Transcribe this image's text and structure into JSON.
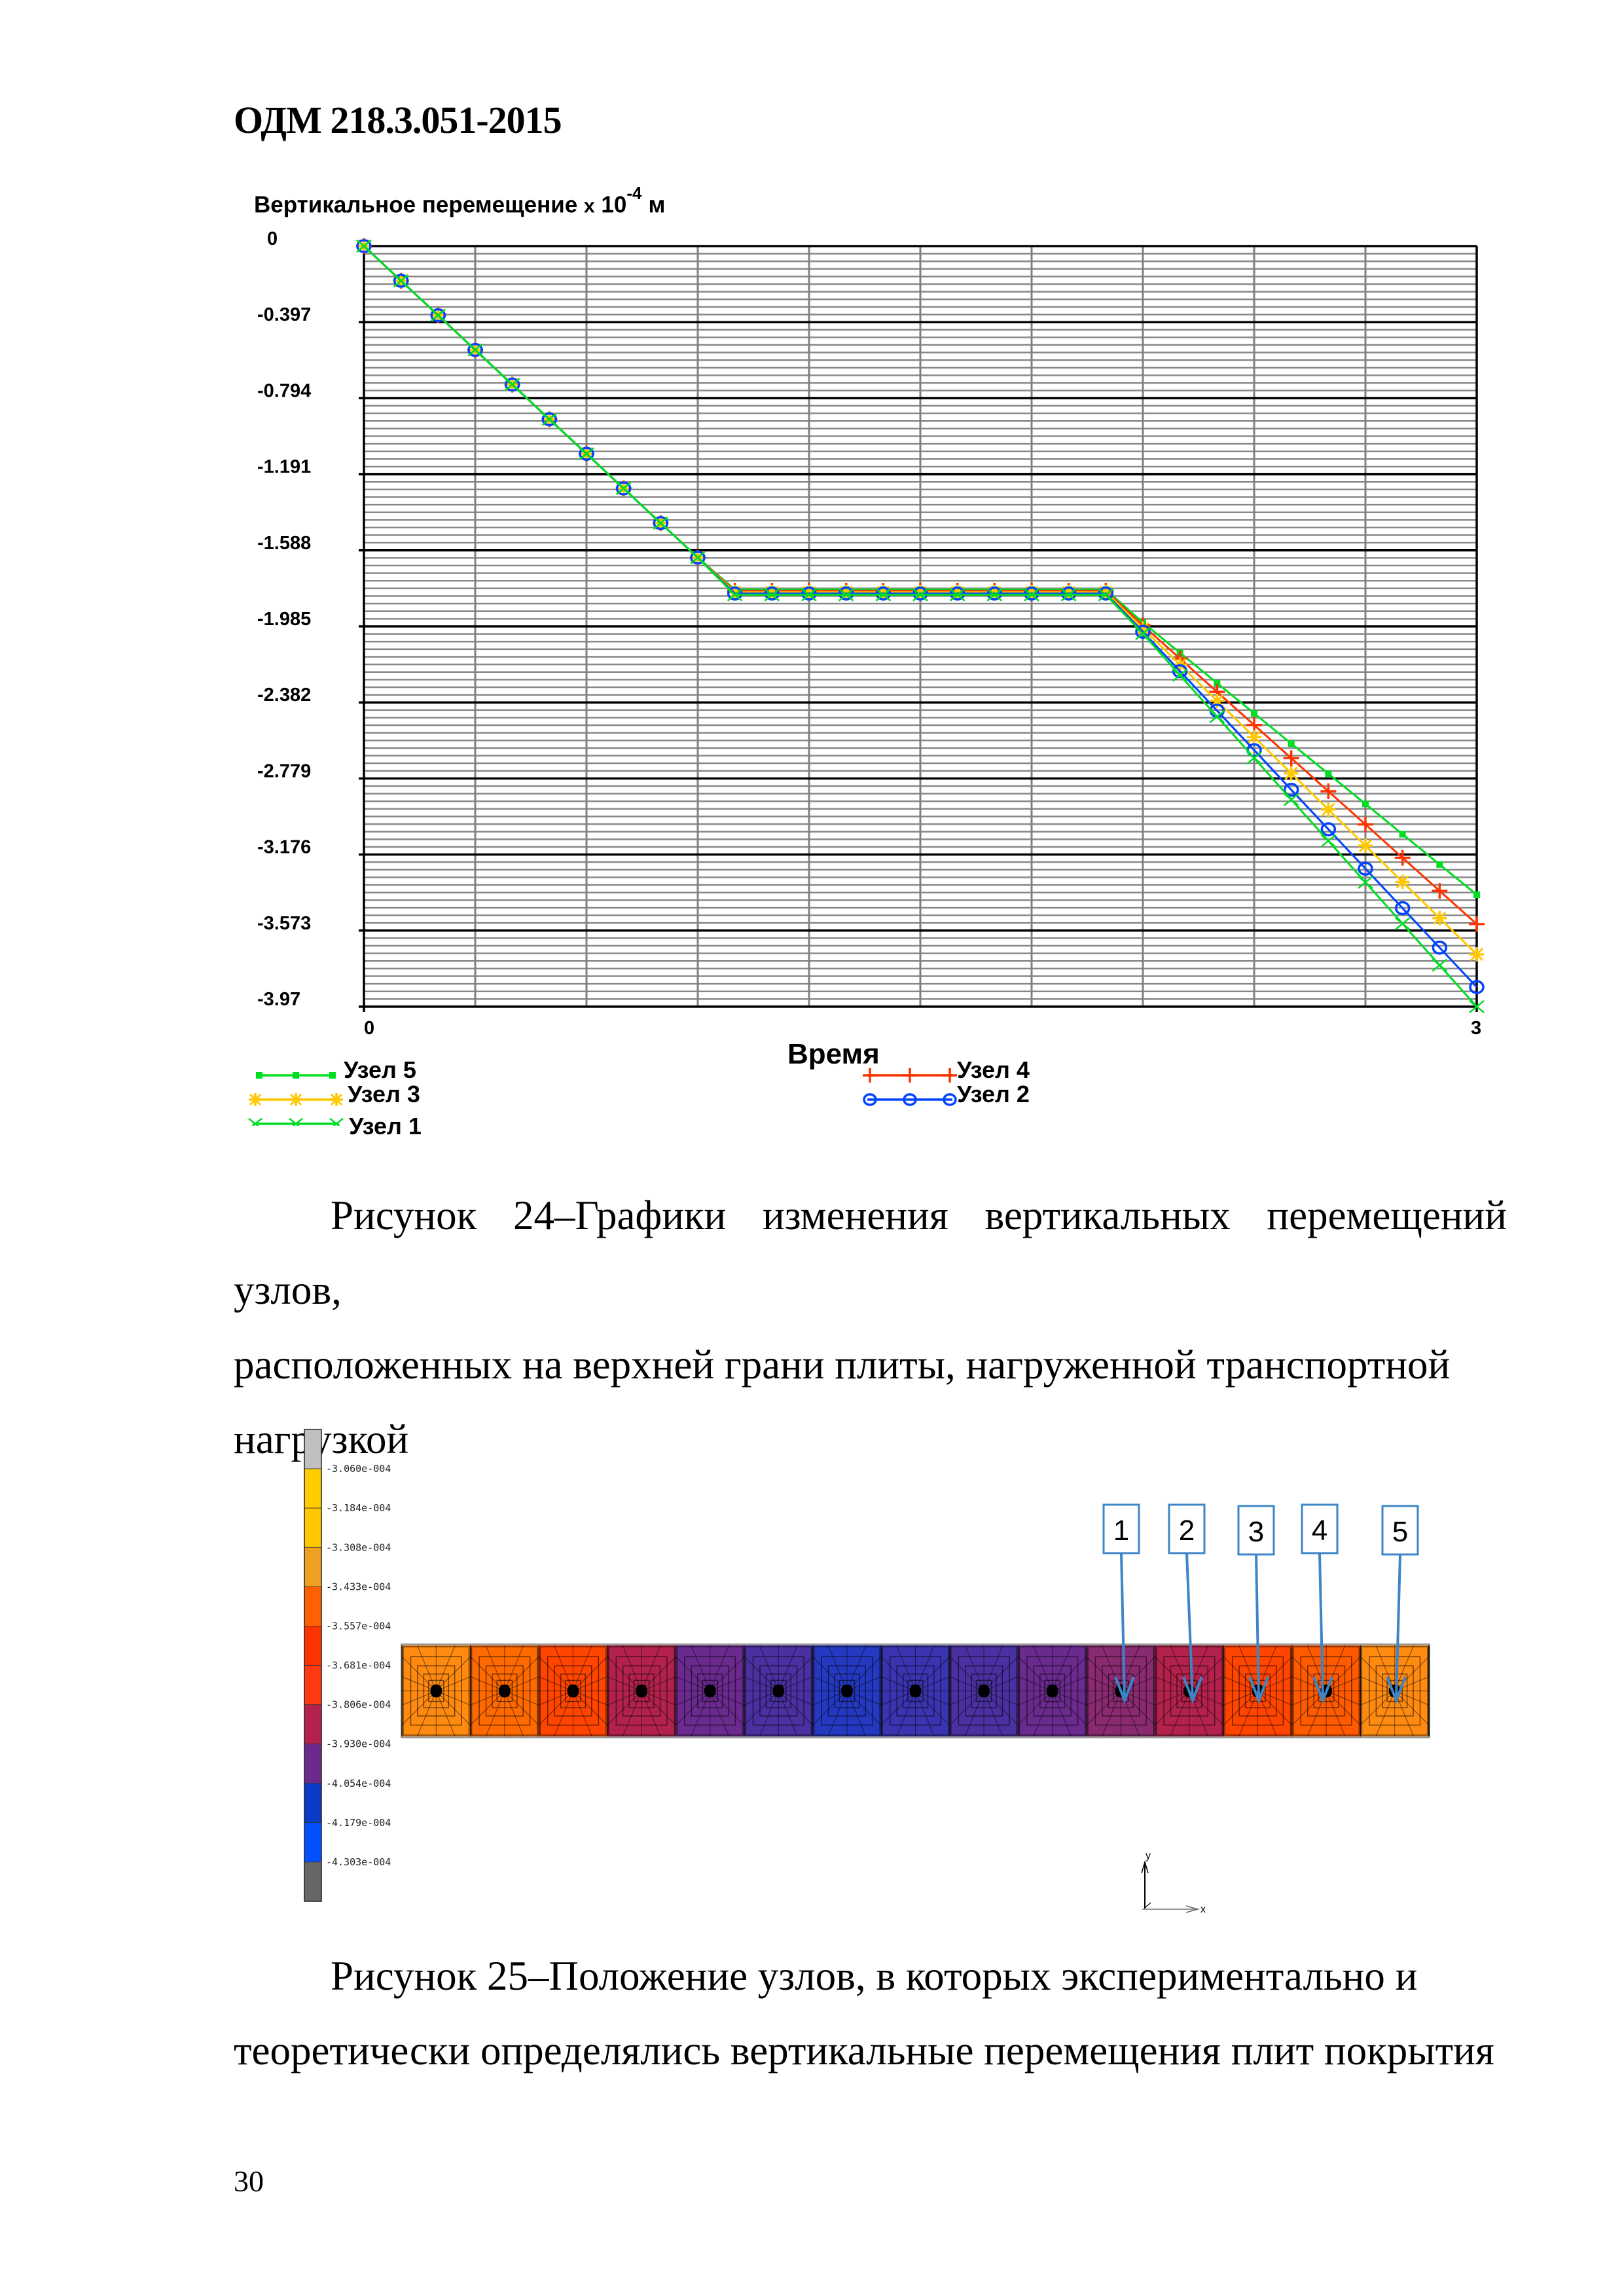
{
  "header": {
    "doc_code": "ОДМ 218.3.051-2015"
  },
  "figure24": {
    "title_main": "Вертикальное перемещение",
    "title_x": "х",
    "title_base": "10",
    "title_exp": "-4",
    "title_unit": "м",
    "xaxis_title": "Время",
    "caption_lines": [
      "Рисунок 24–Графики изменения вертикальных перемещений узлов,",
      "расположенных на верхней грани плиты, нагруженной транспортной",
      "нагрузкой"
    ],
    "legend": [
      {
        "label": "Узел 5",
        "color": "#00dd22",
        "marker": "square"
      },
      {
        "label": "Узел 3",
        "color": "#ffc800",
        "marker": "asterisk"
      },
      {
        "label": "Узел 1",
        "color": "#00dd22",
        "marker": "x"
      },
      {
        "label": "Узел 4",
        "color": "#ff3300",
        "marker": "plus"
      },
      {
        "label": "Узел 2",
        "color": "#0044ff",
        "marker": "circle"
      }
    ]
  },
  "chart_data": {
    "type": "line",
    "title": "Вертикальное перемещение х 10^-4 м",
    "xlabel": "Время",
    "ylabel": "Вертикальное перемещение х 10^-4 м",
    "xlim": [
      0,
      3
    ],
    "ylim": [
      -3.97,
      0
    ],
    "x_ticks": [
      "0",
      "3"
    ],
    "y_ticks": [
      "0",
      "-0.397",
      "-0.794",
      "-1.191",
      "-1.588",
      "-1.985",
      "-2.382",
      "-2.779",
      "-3.176",
      "-3.573",
      "-3.97"
    ],
    "grid": true,
    "legend_position": "bottom",
    "x": [
      0.0,
      0.1,
      0.2,
      0.3,
      0.4,
      0.5,
      0.6,
      0.7,
      0.8,
      0.9,
      1.0,
      1.1,
      1.2,
      1.3,
      1.4,
      1.5,
      1.6,
      1.7,
      1.8,
      1.9,
      2.0,
      2.1,
      2.2,
      2.3,
      2.4,
      2.5,
      2.6,
      2.7,
      2.8,
      2.9,
      3.0
    ],
    "series": [
      {
        "name": "Узел 5",
        "color": "#00dd22",
        "marker": "square",
        "values": [
          0,
          -0.181,
          -0.361,
          -0.542,
          -0.723,
          -0.904,
          -1.084,
          -1.265,
          -1.446,
          -1.626,
          -1.807,
          -1.807,
          -1.807,
          -1.807,
          -1.807,
          -1.807,
          -1.807,
          -1.807,
          -1.807,
          -1.807,
          -1.807,
          -1.965,
          -2.123,
          -2.281,
          -2.439,
          -2.597,
          -2.754,
          -2.912,
          -3.07,
          -3.228,
          -3.386
        ]
      },
      {
        "name": "Узел 4",
        "color": "#ff3300",
        "marker": "plus",
        "values": [
          0,
          -0.181,
          -0.361,
          -0.542,
          -0.723,
          -0.904,
          -1.084,
          -1.265,
          -1.446,
          -1.626,
          -1.807,
          -1.807,
          -1.807,
          -1.807,
          -1.807,
          -1.807,
          -1.807,
          -1.807,
          -1.807,
          -1.807,
          -1.807,
          -1.98,
          -2.153,
          -2.327,
          -2.5,
          -2.673,
          -2.846,
          -3.019,
          -3.193,
          -3.366,
          -3.539
        ]
      },
      {
        "name": "Узел 3",
        "color": "#ffc800",
        "marker": "asterisk",
        "values": [
          0,
          -0.181,
          -0.361,
          -0.542,
          -0.723,
          -0.904,
          -1.084,
          -1.265,
          -1.446,
          -1.626,
          -1.807,
          -1.807,
          -1.807,
          -1.807,
          -1.807,
          -1.807,
          -1.807,
          -1.807,
          -1.807,
          -1.807,
          -1.807,
          -1.996,
          -2.185,
          -2.374,
          -2.563,
          -2.752,
          -2.941,
          -3.13,
          -3.319,
          -3.508,
          -3.697
        ]
      },
      {
        "name": "Узел 2",
        "color": "#0044ff",
        "marker": "circle",
        "values": [
          0,
          -0.181,
          -0.361,
          -0.542,
          -0.723,
          -0.904,
          -1.084,
          -1.265,
          -1.446,
          -1.626,
          -1.807,
          -1.807,
          -1.807,
          -1.807,
          -1.807,
          -1.807,
          -1.807,
          -1.807,
          -1.807,
          -1.807,
          -1.807,
          -2.013,
          -2.219,
          -2.425,
          -2.631,
          -2.838,
          -3.044,
          -3.25,
          -3.456,
          -3.662,
          -3.868
        ]
      },
      {
        "name": "Узел 1",
        "color": "#00dd22",
        "marker": "x",
        "values": [
          0,
          -0.181,
          -0.361,
          -0.542,
          -0.723,
          -0.904,
          -1.084,
          -1.265,
          -1.446,
          -1.626,
          -1.807,
          -1.807,
          -1.807,
          -1.807,
          -1.807,
          -1.807,
          -1.807,
          -1.807,
          -1.807,
          -1.807,
          -1.807,
          -2.023,
          -2.24,
          -2.456,
          -2.672,
          -2.889,
          -3.105,
          -3.321,
          -3.537,
          -3.754,
          -3.97
        ]
      }
    ]
  },
  "figure25": {
    "caption_lines": [
      "Рисунок 25–Положение узлов, в которых экспериментально и",
      "теоретически определялись вертикальные перемещения плит покрытия"
    ],
    "colorbar": {
      "labels": [
        "-3.060e-004",
        "-3.184e-004",
        "-3.308e-004",
        "-3.433e-004",
        "-3.557e-004",
        "-3.681e-004",
        "-3.806e-004",
        "-3.930e-004",
        "-4.054e-004",
        "-4.179e-004",
        "-4.303e-004"
      ],
      "colors": [
        "#c0c0c0",
        "#ffcc00",
        "#ffc800",
        "#f0a020",
        "#ff6000",
        "#ff3300",
        "#ff3a10",
        "#b3224c",
        "#6a2a8e",
        "#0a3cc8",
        "#0050ff",
        "#666666"
      ]
    },
    "slab_cell_colors": [
      "#ff8a10",
      "#ff6a00",
      "#ff4500",
      "#b3224c",
      "#6a2a8e",
      "#4a30a0",
      "#2438c0",
      "#3a34b0",
      "#4a30a0",
      "#6a2a8e",
      "#8a2a70",
      "#b3224c",
      "#ff4500",
      "#ff5a00",
      "#ff8a10"
    ],
    "node_labels": [
      "1",
      "2",
      "3",
      "4",
      "5"
    ],
    "axes": {
      "x": "x",
      "y": "y"
    },
    "arrow_color": "#3d85c6"
  },
  "page": {
    "number": "30"
  }
}
